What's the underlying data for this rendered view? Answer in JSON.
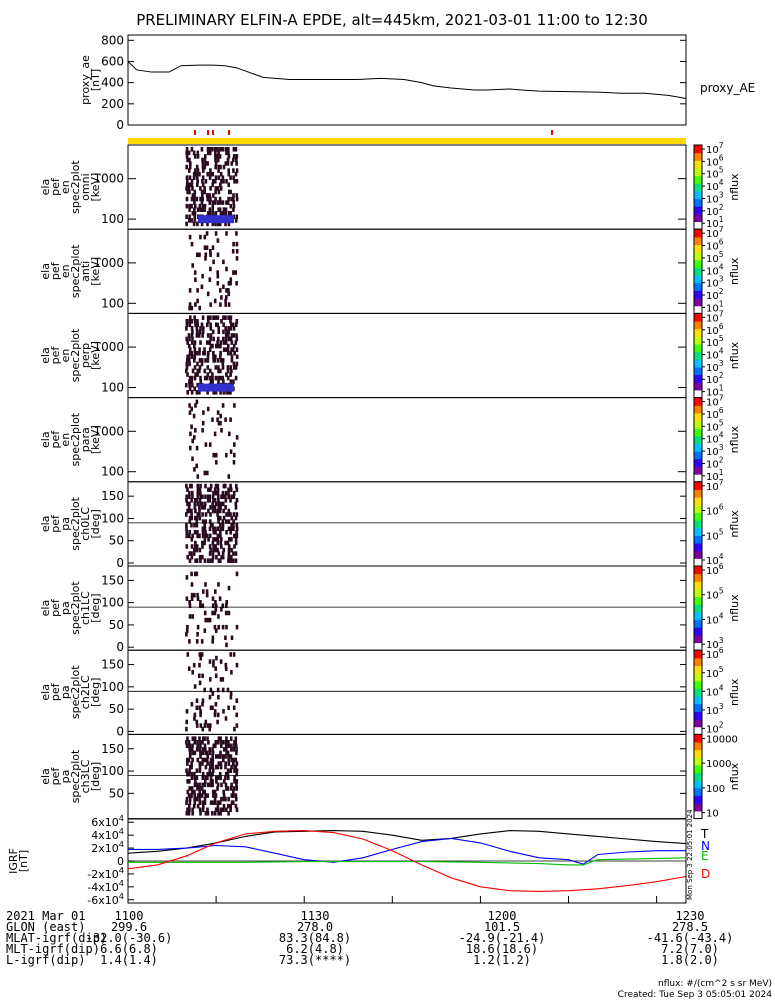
{
  "title": "PRELIMINARY ELFIN-A EPDE, alt=445km, 2021-03-01 11:00 to 12:30",
  "side_stamp": "Mon Sep  3 22:05:01 2024",
  "footer": {
    "line1": "nflux: #/(cm^2 s sr MeV)",
    "line2": "Created: Tue Sep  3 05:05:01 2024"
  },
  "ephemeris": {
    "rows": [
      {
        "label": "2021 Mar 01",
        "values": [
          "1100",
          "1130",
          "1200",
          "1230"
        ]
      },
      {
        "label": "GLON (east)",
        "values": [
          "299.6",
          "278.0",
          "101.5",
          "278.5"
        ]
      },
      {
        "label": "MLAT-igrf(dip)",
        "values": [
          "-32.0(-30.6)",
          "83.3(84.8)",
          "-24.9(-21.4)",
          "-41.6(-43.4)"
        ]
      },
      {
        "label": "MLT-igrf(dip)",
        "values": [
          "6.6(6.8)",
          "6.2(4.8)",
          "18.6(18.6)",
          "7.2(7.0)"
        ]
      },
      {
        "label": "L-igrf(dip)",
        "values": [
          "1.4(1.4)",
          "73.3(****)",
          "1.2(1.2)",
          "1.8(2.0)"
        ]
      }
    ]
  },
  "colorbar_unit": "nflux",
  "colors": {
    "fg": "#000000",
    "bar_yellow": "#ffd700",
    "tick_red": "#ff0000",
    "spec_dark": "#2a0a1e",
    "spec_blue": "#3030cc"
  },
  "chart_data": [
    {
      "type": "line",
      "panel": "proxy_ae",
      "ylabel": "proxy_ae [nT]",
      "legend": "proxy_AE",
      "yticks": [
        "0",
        "200",
        "400",
        "600",
        "800"
      ],
      "ylim": [
        0,
        850
      ],
      "x_minutes": [
        0,
        3,
        8,
        14,
        18,
        24,
        29,
        33,
        37,
        41,
        46,
        55,
        64,
        70,
        78,
        86,
        94,
        100,
        104,
        110,
        114,
        118,
        122,
        126,
        130,
        134,
        140,
        150,
        160,
        168,
        176,
        184,
        190
      ],
      "values": [
        600,
        520,
        500,
        500,
        560,
        565,
        565,
        560,
        540,
        500,
        450,
        430,
        430,
        430,
        430,
        440,
        430,
        400,
        370,
        350,
        340,
        330,
        330,
        335,
        340,
        330,
        320,
        315,
        310,
        300,
        300,
        280,
        250
      ]
    },
    {
      "type": "heatmap",
      "panel": "ela_pef_en_spec2plot_omni",
      "ylabel": "ela pef en spec2plot omni [keV]",
      "yticks": [
        "100",
        "1000"
      ],
      "yscale": "log",
      "colorbar": {
        "ticks": [
          "10^1",
          "10^2",
          "10^3",
          "10^4",
          "10^5",
          "10^6",
          "10^7"
        ]
      }
    },
    {
      "type": "heatmap",
      "panel": "ela_pef_en_spec2plot_anti",
      "ylabel": "ela pef en spec2plot anti [keV]",
      "yticks": [
        "100",
        "1000"
      ],
      "yscale": "log",
      "colorbar": {
        "ticks": [
          "10^1",
          "10^2",
          "10^3",
          "10^4",
          "10^5",
          "10^6",
          "10^7"
        ]
      }
    },
    {
      "type": "heatmap",
      "panel": "ela_pef_en_spec2plot_perp",
      "ylabel": "ela pef en spec2plot perp [keV]",
      "yticks": [
        "100",
        "1000"
      ],
      "yscale": "log",
      "colorbar": {
        "ticks": [
          "10^1",
          "10^2",
          "10^3",
          "10^4",
          "10^5",
          "10^6",
          "10^7"
        ]
      }
    },
    {
      "type": "heatmap",
      "panel": "ela_pef_en_spec2plot_para",
      "ylabel": "ela pef en spec2plot para [keV]",
      "yticks": [
        "100",
        "1000"
      ],
      "yscale": "log",
      "colorbar": {
        "ticks": [
          "10^1",
          "10^2",
          "10^3",
          "10^4",
          "10^5",
          "10^6",
          "10^7"
        ]
      }
    },
    {
      "type": "heatmap",
      "panel": "ela_pef_pa_spec2plot_ch0LC",
      "ylabel": "ela pef pa spec2plot ch0LC [deg]",
      "yticks": [
        "0",
        "50",
        "100",
        "150"
      ],
      "colorbar": {
        "ticks": [
          "10^4",
          "10^5",
          "10^6",
          "10^7"
        ]
      }
    },
    {
      "type": "heatmap",
      "panel": "ela_pef_pa_spec2plot_ch1LC",
      "ylabel": "ela pef pa spec2plot ch1LC [deg]",
      "yticks": [
        "0",
        "50",
        "100",
        "150"
      ],
      "colorbar": {
        "ticks": [
          "10^3",
          "10^4",
          "10^5",
          "10^6"
        ]
      }
    },
    {
      "type": "heatmap",
      "panel": "ela_pef_pa_spec2plot_ch2LC",
      "ylabel": "ela pef pa spec2plot ch2LC [deg]",
      "yticks": [
        "0",
        "50",
        "100",
        "150"
      ],
      "colorbar": {
        "ticks": [
          "10^2",
          "10^3",
          "10^4",
          "10^5",
          "10^6"
        ]
      }
    },
    {
      "type": "heatmap",
      "panel": "ela_pef_pa_spec2plot_ch3LC",
      "ylabel": "ela pef pa spec2plot ch3LC [deg]",
      "yticks": [
        "50",
        "100",
        "150"
      ],
      "colorbar": {
        "ticks": [
          "10",
          "100",
          "1000",
          "10000"
        ]
      }
    },
    {
      "type": "line",
      "panel": "IGRF",
      "ylabel": "IGRF [nT]",
      "yticks": [
        "-6x10^4",
        "-4x10^4",
        "-2x10^4",
        "0",
        "2x10^4",
        "4x10^4",
        "6x10^4"
      ],
      "ylim": [
        -65000,
        65000
      ],
      "series": [
        {
          "name": "T",
          "color": "#000000",
          "x_minutes": [
            0,
            10,
            20,
            30,
            40,
            50,
            60,
            70,
            80,
            90,
            100,
            110,
            120,
            130,
            140,
            150,
            160,
            170,
            180,
            190
          ],
          "values": [
            12000,
            15000,
            20000,
            28000,
            38000,
            45000,
            46000,
            47000,
            46000,
            40000,
            32000,
            35000,
            42000,
            47000,
            46000,
            42000,
            38000,
            34000,
            30000,
            27000
          ]
        },
        {
          "name": "N",
          "color": "#0000ff",
          "x_minutes": [
            0,
            10,
            20,
            30,
            40,
            50,
            60,
            70,
            80,
            90,
            100,
            110,
            120,
            130,
            140,
            150,
            155,
            160,
            170,
            180,
            190
          ],
          "values": [
            18000,
            18000,
            20000,
            24000,
            22000,
            12000,
            2000,
            -2000,
            5000,
            18000,
            30000,
            35000,
            28000,
            15000,
            5000,
            2000,
            -5000,
            10000,
            14000,
            16000,
            16000
          ]
        },
        {
          "name": "E",
          "color": "#00c000",
          "x_minutes": [
            0,
            20,
            40,
            60,
            80,
            100,
            120,
            140,
            150,
            155,
            160,
            170,
            180,
            190
          ],
          "values": [
            -2000,
            -2000,
            -2000,
            -1000,
            -1000,
            -1000,
            -2000,
            -4000,
            -6000,
            -6000,
            2000,
            3000,
            4000,
            5000
          ]
        },
        {
          "name": "D",
          "color": "#ff0000",
          "x_minutes": [
            0,
            10,
            20,
            30,
            40,
            50,
            60,
            70,
            80,
            90,
            100,
            110,
            120,
            130,
            140,
            150,
            160,
            170,
            180,
            190
          ],
          "values": [
            -12000,
            -6000,
            8000,
            28000,
            42000,
            46000,
            47000,
            44000,
            34000,
            16000,
            -6000,
            -26000,
            -40000,
            -46000,
            -47000,
            -46000,
            -43000,
            -38000,
            -32000,
            -24000
          ]
        }
      ]
    }
  ]
}
